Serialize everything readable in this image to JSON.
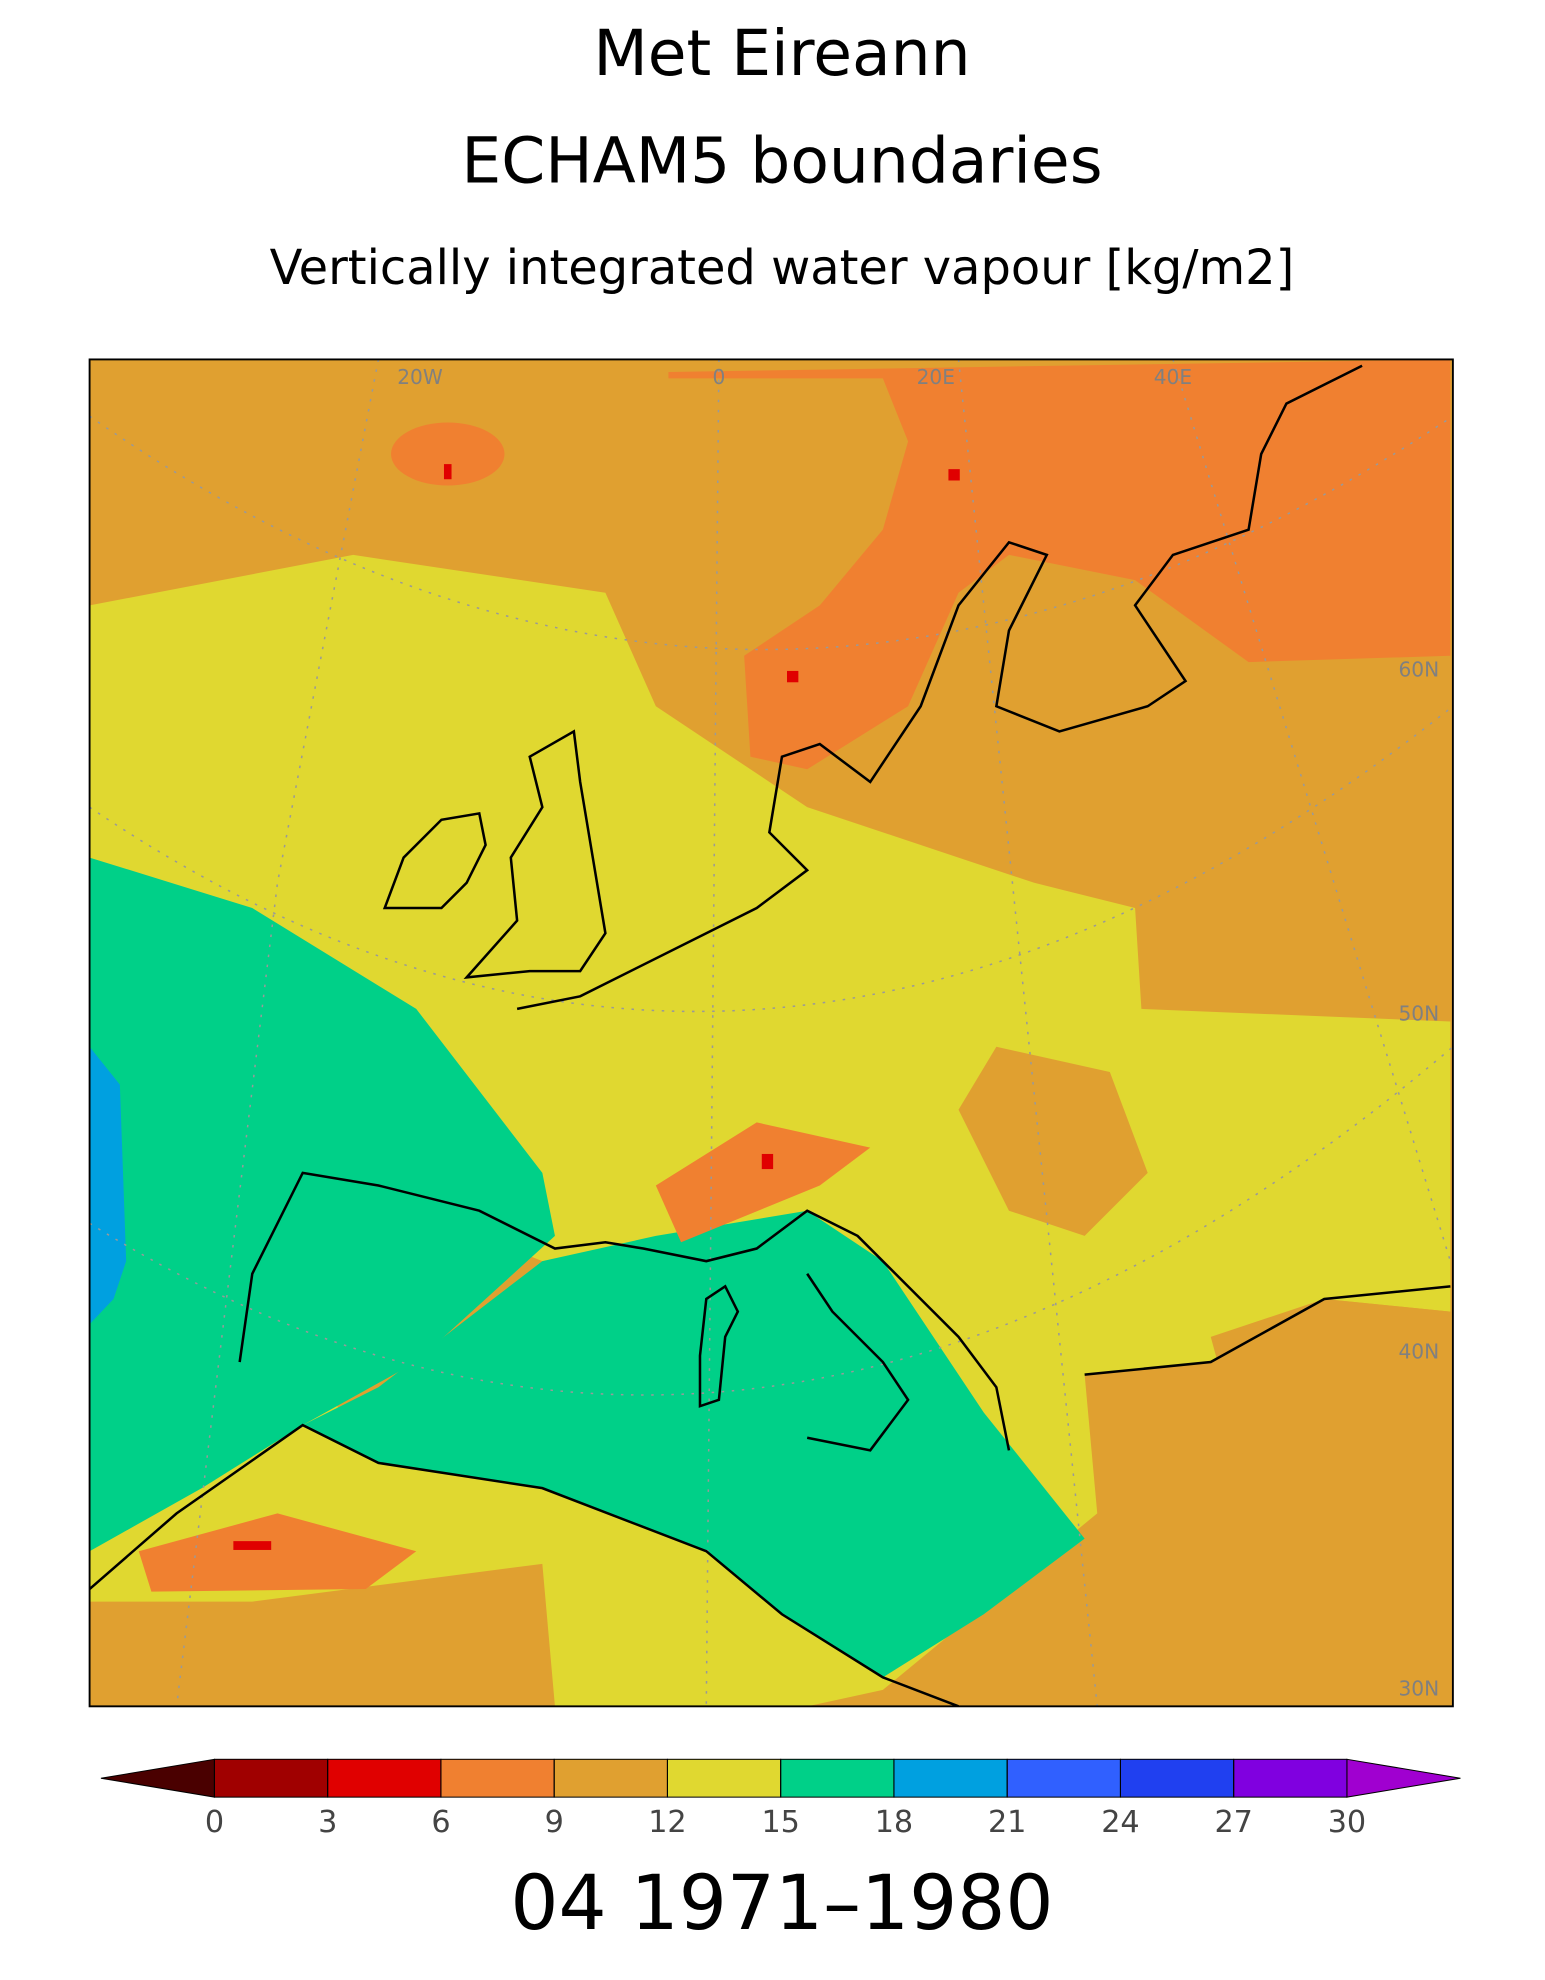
{
  "header": {
    "title": "Met Eireann",
    "subtitle": "ECHAM5 boundaries",
    "variable": "Vertically integrated water vapour [kg/m2]"
  },
  "map": {
    "graticule_labels": [
      {
        "text": "20W",
        "lon": -20
      },
      {
        "text": "0",
        "lon": 0
      },
      {
        "text": "20E",
        "lon": 20
      },
      {
        "text": "40E",
        "lon": 40
      },
      {
        "text": "60N",
        "lat": 60
      },
      {
        "text": "50N",
        "lat": 50
      },
      {
        "text": "40N",
        "lat": 40
      },
      {
        "text": "30N",
        "lat": 30
      }
    ]
  },
  "colorbar": {
    "levels": [
      0,
      3,
      6,
      9,
      12,
      15,
      18,
      21,
      24,
      27,
      30
    ],
    "colors": [
      "#a00000",
      "#e00000",
      "#f08030",
      "#e0a030",
      "#e0d830",
      "#00d088",
      "#00a0e0",
      "#3060ff",
      "#2040f0",
      "#8000e0"
    ],
    "under_color": "#4a0000",
    "over_color": "#a000d0"
  },
  "footer": "04 1971–1980"
}
